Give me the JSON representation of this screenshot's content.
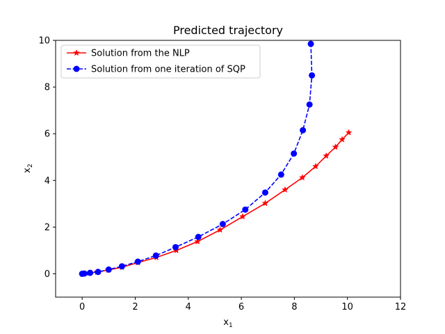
{
  "chart_data": {
    "type": "line",
    "title": "Predicted trajectory",
    "xlabel": {
      "base": "x",
      "sub": "1"
    },
    "ylabel": {
      "base": "x",
      "sub": "2"
    },
    "xlim": [
      -1,
      12
    ],
    "ylim": [
      -1,
      10
    ],
    "xticks": [
      0,
      2,
      4,
      6,
      8,
      10,
      12
    ],
    "yticks": [
      0,
      2,
      4,
      6,
      8,
      10
    ],
    "grid": false,
    "legend_position": "top-left",
    "series": [
      {
        "name": "Solution from the NLP",
        "color": "#ff0000",
        "line_style": "solid",
        "marker": "star",
        "x": [
          0.0,
          0.06,
          0.25,
          0.56,
          0.98,
          1.5,
          2.1,
          2.8,
          3.55,
          4.35,
          5.2,
          6.05,
          6.9,
          7.65,
          8.3,
          8.8,
          9.2,
          9.55,
          9.8,
          10.05
        ],
        "y": [
          0.0,
          0.01,
          0.03,
          0.07,
          0.16,
          0.28,
          0.48,
          0.7,
          1.0,
          1.38,
          1.88,
          2.45,
          3.02,
          3.6,
          4.12,
          4.6,
          5.05,
          5.43,
          5.75,
          6.05
        ]
      },
      {
        "name": "Solution from one iteration of SQP",
        "color": "#0000ff",
        "line_style": "dashed",
        "marker": "circle",
        "x": [
          0.0,
          0.08,
          0.3,
          0.6,
          1.0,
          1.5,
          2.1,
          2.78,
          3.52,
          4.38,
          5.3,
          6.15,
          6.9,
          7.5,
          7.98,
          8.32,
          8.57,
          8.66,
          8.62
        ],
        "y": [
          0.0,
          0.01,
          0.04,
          0.08,
          0.18,
          0.32,
          0.52,
          0.78,
          1.14,
          1.58,
          2.13,
          2.75,
          3.48,
          4.25,
          5.15,
          6.15,
          7.25,
          8.5,
          9.85
        ]
      }
    ]
  }
}
